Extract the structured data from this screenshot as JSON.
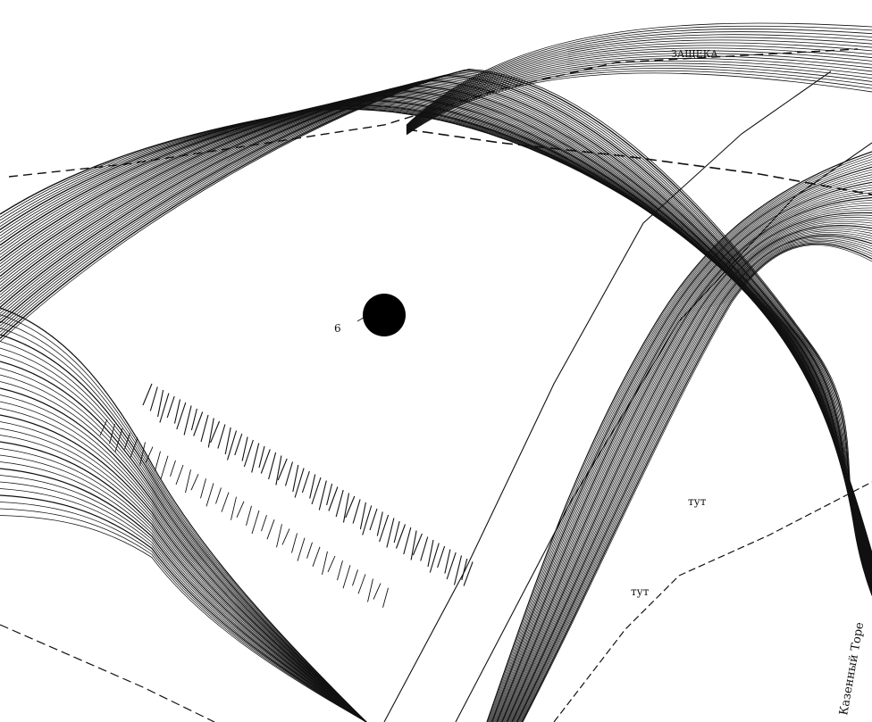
{
  "map": {
    "kind": "topographic",
    "style": "black-and-white contour map",
    "colors": {
      "background": "#ffffff",
      "ink": "#111111"
    },
    "marker": {
      "icon": "filled-black-circle",
      "color": "#000000"
    },
    "labels": {
      "point_marker": "6",
      "top_label": "ЗАЩЕКА",
      "tumulus_label_1": "тут",
      "tumulus_label_2": "тут",
      "river_label": "Казенный Торе"
    }
  }
}
